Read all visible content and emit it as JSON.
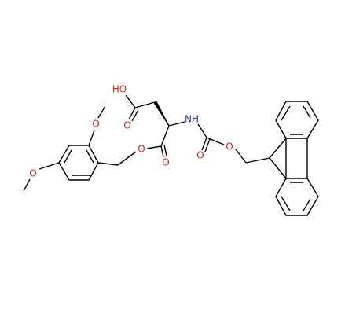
{
  "atoms": [
    {
      "label": "HO"
    },
    {
      "label": "O"
    },
    {
      "label": "NH"
    },
    {
      "label": "O"
    },
    {
      "label": "O"
    },
    {
      "label": "O"
    },
    {
      "label": "O"
    },
    {
      "label": "O"
    },
    {
      "label": "O"
    }
  ]
}
